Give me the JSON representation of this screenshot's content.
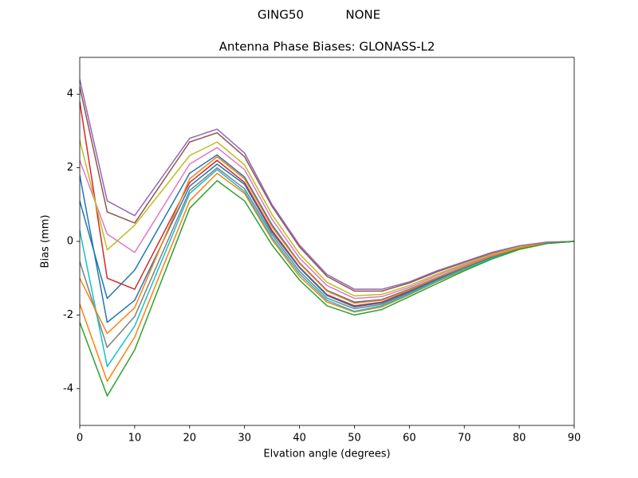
{
  "chart_data": {
    "type": "line",
    "suptitle": "GING50           NONE",
    "title": "Antenna Phase Biases: GLONASS-L2",
    "xlabel": "Elvation angle (degrees)",
    "ylabel": "Bias (mm)",
    "x": [
      0,
      5,
      10,
      20,
      25,
      30,
      35,
      40,
      45,
      50,
      55,
      60,
      65,
      70,
      75,
      80,
      85,
      90
    ],
    "xlim": [
      0,
      90
    ],
    "xticks": [
      0,
      10,
      20,
      30,
      40,
      50,
      60,
      70,
      80,
      90
    ],
    "ylim": [
      -5,
      5
    ],
    "yticks": [
      -4,
      -2,
      0,
      2,
      4
    ],
    "grid": false,
    "series": [
      {
        "color": "#1f77b4",
        "values": [
          1.1,
          -1.55,
          -0.78,
          1.85,
          2.35,
          1.75,
          0.45,
          -0.58,
          -1.33,
          -1.65,
          -1.58,
          -1.3,
          -0.98,
          -0.68,
          -0.39,
          -0.17,
          -0.04,
          0
        ]
      },
      {
        "color": "#ff7f0e",
        "values": [
          -1.7,
          -3.8,
          -2.6,
          1.1,
          1.85,
          1.3,
          0.05,
          -0.95,
          -1.65,
          -1.92,
          -1.78,
          -1.45,
          -1.1,
          -0.77,
          -0.46,
          -0.21,
          -0.05,
          0
        ]
      },
      {
        "color": "#d62728",
        "values": [
          3.8,
          -1.0,
          -1.3,
          1.6,
          2.2,
          1.6,
          0.3,
          -0.7,
          -1.45,
          -1.75,
          -1.65,
          -1.35,
          -1.02,
          -0.7,
          -0.42,
          -0.18,
          -0.05,
          0
        ]
      },
      {
        "color": "#8c564b",
        "values": [
          4.2,
          0.8,
          0.5,
          2.7,
          2.95,
          2.3,
          0.95,
          -0.15,
          -0.95,
          -1.35,
          -1.35,
          -1.13,
          -0.83,
          -0.57,
          -0.32,
          -0.13,
          -0.03,
          0
        ]
      },
      {
        "color": "#e377c2",
        "values": [
          2.2,
          0.2,
          -0.3,
          2.1,
          2.55,
          1.95,
          0.6,
          -0.45,
          -1.2,
          -1.55,
          -1.5,
          -1.25,
          -0.93,
          -0.64,
          -0.37,
          -0.16,
          -0.04,
          0
        ]
      },
      {
        "color": "#7f7f7f",
        "values": [
          -0.55,
          -2.88,
          -2.04,
          1.38,
          2.0,
          1.43,
          0.18,
          -0.81,
          -1.54,
          -1.83,
          -1.71,
          -1.4,
          -1.06,
          -0.74,
          -0.44,
          -0.2,
          -0.05,
          0
        ]
      },
      {
        "color": "#bcbd22",
        "values": [
          2.75,
          -0.23,
          0.44,
          2.33,
          2.7,
          2.08,
          0.73,
          -0.34,
          -1.11,
          -1.48,
          -1.44,
          -1.2,
          -0.89,
          -0.61,
          -0.35,
          -0.15,
          -0.03,
          0
        ]
      },
      {
        "color": "#17becf",
        "values": [
          0.3,
          -3.4,
          -2.3,
          1.3,
          1.95,
          1.35,
          0.1,
          -0.88,
          -1.6,
          -1.9,
          -1.75,
          -1.43,
          -1.08,
          -0.75,
          -0.45,
          -0.2,
          -0.05,
          0
        ]
      },
      {
        "color": "#1f77b4",
        "values": [
          1.8,
          -2.2,
          -1.6,
          1.5,
          2.1,
          1.55,
          0.25,
          -0.72,
          -1.47,
          -1.78,
          -1.67,
          -1.37,
          -1.03,
          -0.71,
          -0.42,
          -0.19,
          -0.05,
          0
        ]
      },
      {
        "color": "#ff7f0e",
        "values": [
          -1.0,
          -2.5,
          -1.8,
          1.7,
          2.3,
          1.7,
          0.4,
          -0.6,
          -1.35,
          -1.68,
          -1.6,
          -1.32,
          -0.99,
          -0.69,
          -0.4,
          -0.18,
          -0.04,
          0
        ]
      },
      {
        "color": "#9467bd",
        "values": [
          4.4,
          1.1,
          0.7,
          2.8,
          3.05,
          2.4,
          1.0,
          -0.1,
          -0.9,
          -1.3,
          -1.3,
          -1.1,
          -0.8,
          -0.55,
          -0.3,
          -0.12,
          -0.02,
          0
        ]
      },
      {
        "color": "#2ca02c",
        "values": [
          -2.2,
          -4.2,
          -2.95,
          0.9,
          1.65,
          1.1,
          -0.1,
          -1.05,
          -1.75,
          -2.0,
          -1.85,
          -1.5,
          -1.15,
          -0.8,
          -0.48,
          -0.22,
          -0.06,
          0
        ]
      }
    ]
  }
}
